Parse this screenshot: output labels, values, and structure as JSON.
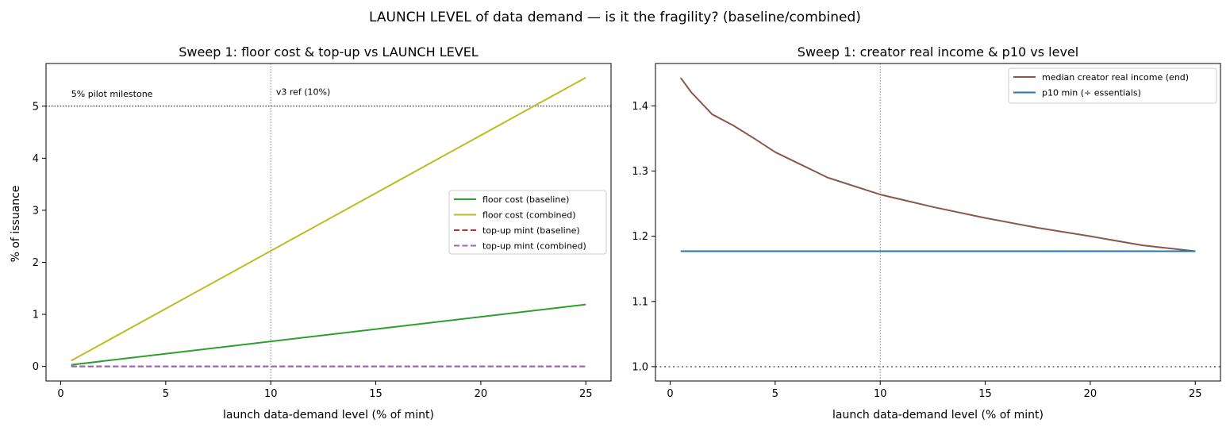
{
  "figure": {
    "suptitle": "LAUNCH LEVEL of data demand — is it the fragility? (baseline/combined)"
  },
  "chart_data": [
    {
      "type": "line",
      "title": "Sweep 1: floor cost & top-up vs LAUNCH LEVEL",
      "xlabel": "launch data-demand level (% of mint)",
      "ylabel": "% of issuance",
      "xlim": [
        -0.7,
        26.2
      ],
      "ylim": [
        -0.28,
        5.82
      ],
      "xticks": [
        0,
        5,
        10,
        15,
        20,
        25
      ],
      "yticks": [
        0,
        1,
        2,
        3,
        4,
        5
      ],
      "grid": false,
      "legend_position": "center-right",
      "series": [
        {
          "name": "floor cost (baseline)",
          "color": "#2ca02c",
          "dash": "solid",
          "x": [
            0.5,
            25
          ],
          "y": [
            0.03,
            1.19
          ]
        },
        {
          "name": "floor cost (combined)",
          "color": "#bcbd22",
          "dash": "solid",
          "x": [
            0.5,
            25
          ],
          "y": [
            0.11,
            5.55
          ]
        },
        {
          "name": "top-up mint (baseline)",
          "color": "#d62728",
          "dash": "dashed",
          "x": [
            0.5,
            25
          ],
          "y": [
            0.0,
            0.0
          ]
        },
        {
          "name": "top-up mint (combined)",
          "color": "#9467bd",
          "dash": "dashed",
          "x": [
            0.5,
            25
          ],
          "y": [
            0.0,
            0.0
          ]
        }
      ],
      "reference_lines": [
        {
          "orientation": "horizontal",
          "value": 5,
          "color": "#000000",
          "style": "dotted",
          "label": "5% pilot milestone",
          "label_x": 0.5,
          "label_y": 5.18
        },
        {
          "orientation": "vertical",
          "value": 10,
          "color": "#808080",
          "style": "dotted",
          "label": "v3 ref (10%)",
          "label_x": 10.25,
          "label_y": 5.22
        }
      ]
    },
    {
      "type": "line",
      "title": "Sweep 1: creator real income & p10 vs level",
      "xlabel": "launch data-demand level (% of mint)",
      "ylabel": "",
      "xlim": [
        -0.7,
        26.2
      ],
      "ylim": [
        0.978,
        1.465
      ],
      "xticks": [
        0,
        5,
        10,
        15,
        20,
        25
      ],
      "yticks": [
        1.0,
        1.1,
        1.2,
        1.3,
        1.4
      ],
      "grid": false,
      "legend_position": "top-right",
      "series": [
        {
          "name": "median creator real income (end)",
          "color": "#8c564b",
          "dash": "solid",
          "x": [
            0.5,
            1,
            2,
            3,
            4,
            5,
            7.5,
            10,
            12.5,
            15,
            17.5,
            20,
            22.5,
            25
          ],
          "y": [
            1.443,
            1.421,
            1.387,
            1.37,
            1.35,
            1.329,
            1.29,
            1.264,
            1.245,
            1.228,
            1.213,
            1.2,
            1.186,
            1.177
          ]
        },
        {
          "name": "p10 min (÷ essentials)",
          "color": "#1f77b4",
          "dash": "solid",
          "x": [
            0.5,
            25
          ],
          "y": [
            1.177,
            1.177
          ]
        }
      ],
      "reference_lines": [
        {
          "orientation": "horizontal",
          "value": 1.0,
          "color": "#808080",
          "style": "dotted"
        },
        {
          "orientation": "vertical",
          "value": 10,
          "color": "#808080",
          "style": "dotted"
        }
      ]
    }
  ]
}
